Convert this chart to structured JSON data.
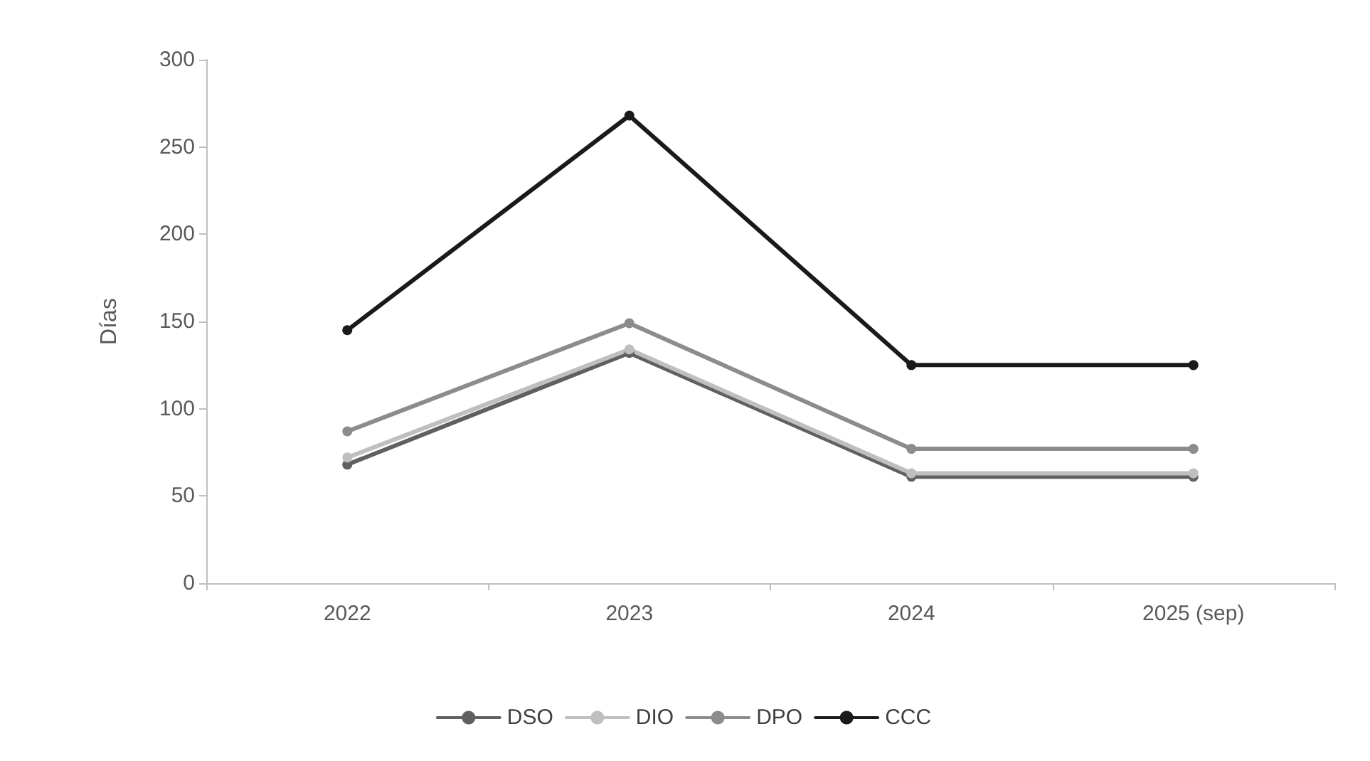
{
  "chart_data": {
    "type": "line",
    "ylabel": "Días",
    "categories": [
      "2022",
      "2023",
      "2024",
      "2025 (sep)"
    ],
    "series": [
      {
        "name": "DSO",
        "color": "#606060",
        "values": [
          68,
          132,
          61,
          61
        ]
      },
      {
        "name": "DIO",
        "color": "#bfbfbf",
        "values": [
          72,
          134,
          63,
          63
        ]
      },
      {
        "name": "DPO",
        "color": "#8c8c8c",
        "values": [
          87,
          149,
          77,
          77
        ]
      },
      {
        "name": "CCC",
        "color": "#1a1a1a",
        "values": [
          145,
          268,
          125,
          125
        ]
      }
    ],
    "ylim": [
      0,
      300
    ],
    "yticks": [
      0,
      50,
      100,
      150,
      200,
      250,
      300
    ],
    "grid": false,
    "legend": "bottom",
    "marker": "circle",
    "line_style": "solid"
  }
}
